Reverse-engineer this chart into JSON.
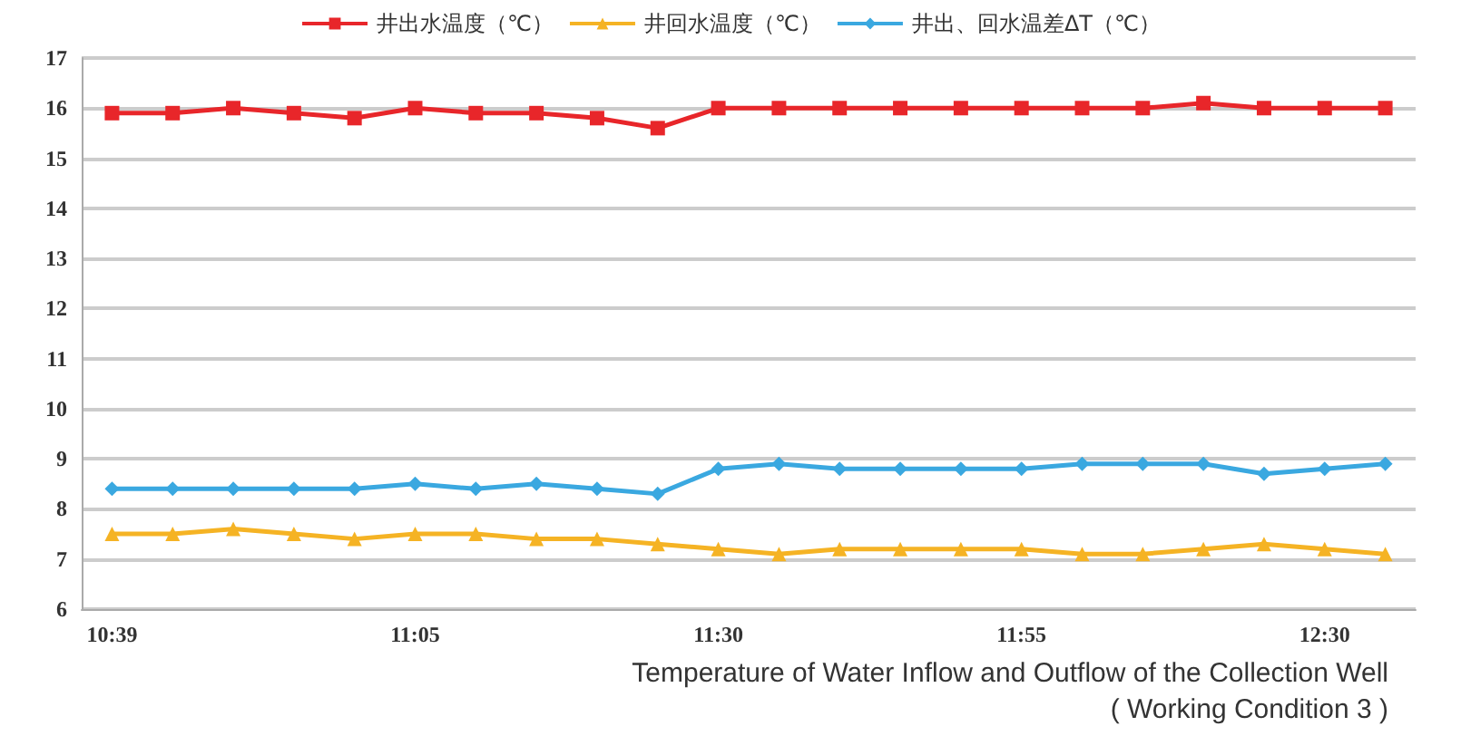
{
  "chart_data": {
    "type": "line",
    "title": "Temperature of Water Inflow and Outflow of the Collection Well",
    "subtitle": "( Working Condition 3 )",
    "categories": [
      "10:39",
      null,
      null,
      null,
      null,
      "11:05",
      null,
      null,
      null,
      null,
      "11:30",
      null,
      null,
      null,
      null,
      "11:55",
      null,
      null,
      null,
      null,
      "12:30",
      null
    ],
    "series": [
      {
        "name": "井出水温度（℃）",
        "color": "#e8262a",
        "marker": "square",
        "values": [
          15.9,
          15.9,
          16.0,
          15.9,
          15.8,
          16.0,
          15.9,
          15.9,
          15.8,
          15.6,
          16.0,
          16.0,
          16.0,
          16.0,
          16.0,
          16.0,
          16.0,
          16.0,
          16.1,
          16.0,
          16.0,
          16.0
        ]
      },
      {
        "name": "井回水温度（℃）",
        "color": "#f5b324",
        "marker": "triangle",
        "values": [
          7.5,
          7.5,
          7.6,
          7.5,
          7.4,
          7.5,
          7.5,
          7.4,
          7.4,
          7.3,
          7.2,
          7.1,
          7.2,
          7.2,
          7.2,
          7.2,
          7.1,
          7.1,
          7.2,
          7.3,
          7.2,
          7.1
        ]
      },
      {
        "name": "井出、回水温差ΔT（℃）",
        "color": "#3aa8e0",
        "marker": "diamond",
        "values": [
          8.4,
          8.4,
          8.4,
          8.4,
          8.4,
          8.5,
          8.4,
          8.5,
          8.4,
          8.3,
          8.8,
          8.9,
          8.8,
          8.8,
          8.8,
          8.8,
          8.9,
          8.9,
          8.9,
          8.7,
          8.8,
          8.9
        ]
      }
    ],
    "ylim": [
      6,
      17
    ],
    "yticks": [
      6,
      7,
      8,
      9,
      10,
      11,
      12,
      13,
      14,
      15,
      16,
      17
    ],
    "grid": "y",
    "legend": "top"
  }
}
